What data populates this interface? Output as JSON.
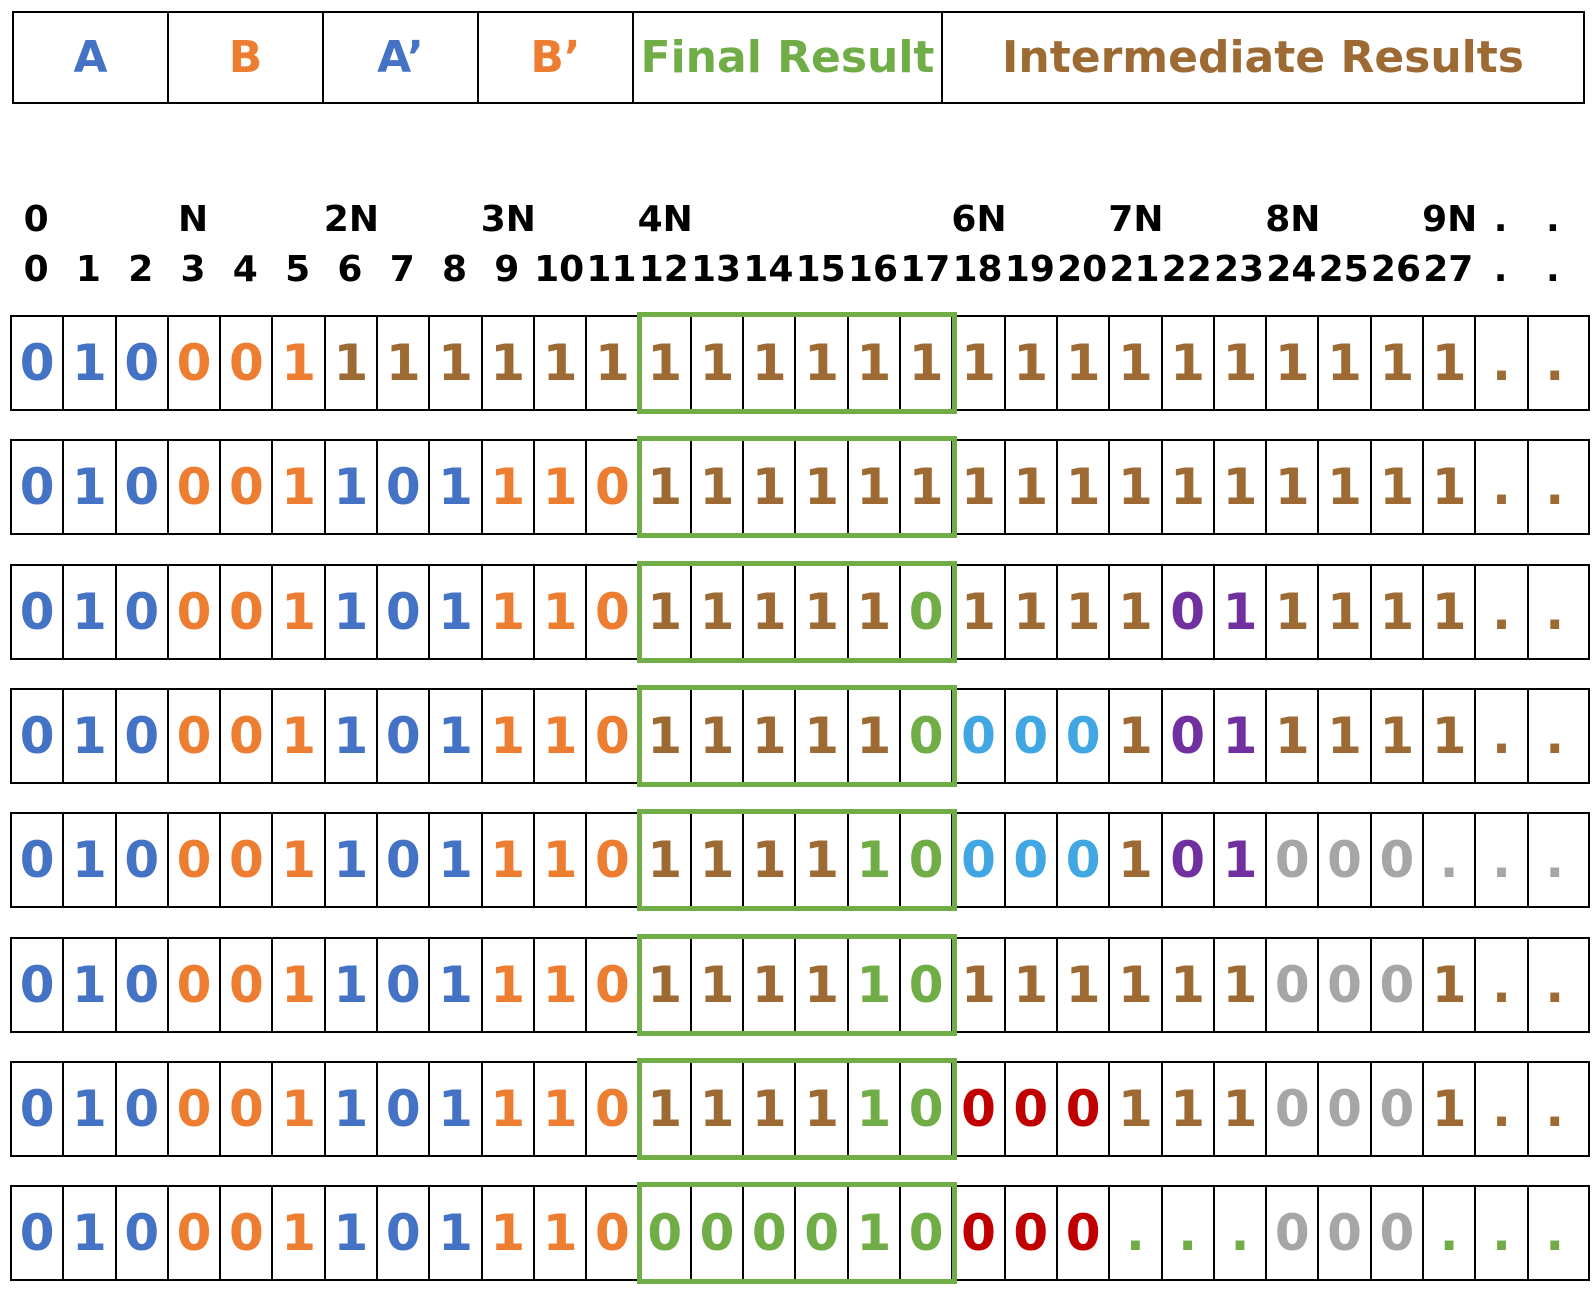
{
  "colors": {
    "A": "#4472c4",
    "B": "#ed7d31",
    "final": "#70ad47",
    "intermediate": "#9c6a32",
    "cyan": "#41a7e3",
    "purple": "#7030a0",
    "gray": "#a6a6a6",
    "red": "#c00000"
  },
  "legend": [
    {
      "label": "A",
      "color": "A"
    },
    {
      "label": "B",
      "color": "B"
    },
    {
      "label": "A’",
      "color": "A"
    },
    {
      "label": "B’",
      "color": "B"
    },
    {
      "label": "Final Result",
      "color": "final"
    },
    {
      "label": "Intermediate Results",
      "color": "intermediate"
    }
  ],
  "header_top": [
    {
      "col": 0,
      "text": "0"
    },
    {
      "col": 3,
      "text": "N"
    },
    {
      "col": 6,
      "text": "2N"
    },
    {
      "col": 9,
      "text": "3N"
    },
    {
      "col": 12,
      "text": "4N"
    },
    {
      "col": 18,
      "text": "6N"
    },
    {
      "col": 21,
      "text": "7N"
    },
    {
      "col": 24,
      "text": "8N"
    },
    {
      "col": 27,
      "text": "9N"
    },
    {
      "col": 28,
      "text": "."
    },
    {
      "col": 29,
      "text": "."
    }
  ],
  "header_bottom": [
    "0",
    "1",
    "2",
    "3",
    "4",
    "5",
    "6",
    "7",
    "8",
    "9",
    "10",
    "11",
    "12",
    "13",
    "14",
    "15",
    "16",
    "17",
    "18",
    "19",
    "20",
    "21",
    "22",
    "23",
    "24",
    "25",
    "26",
    "27",
    ".",
    "."
  ],
  "rows": [
    [
      [
        "0",
        "A"
      ],
      [
        "1",
        "A"
      ],
      [
        "0",
        "A"
      ],
      [
        "0",
        "B"
      ],
      [
        "0",
        "B"
      ],
      [
        "1",
        "B"
      ],
      [
        "1",
        "I"
      ],
      [
        "1",
        "I"
      ],
      [
        "1",
        "I"
      ],
      [
        "1",
        "I"
      ],
      [
        "1",
        "I"
      ],
      [
        "1",
        "I"
      ],
      [
        "1",
        "I"
      ],
      [
        "1",
        "I"
      ],
      [
        "1",
        "I"
      ],
      [
        "1",
        "I"
      ],
      [
        "1",
        "I"
      ],
      [
        "1",
        "I"
      ],
      [
        "1",
        "I"
      ],
      [
        "1",
        "I"
      ],
      [
        "1",
        "I"
      ],
      [
        "1",
        "I"
      ],
      [
        "1",
        "I"
      ],
      [
        "1",
        "I"
      ],
      [
        "1",
        "I"
      ],
      [
        "1",
        "I"
      ],
      [
        "1",
        "I"
      ],
      [
        "1",
        "I"
      ],
      [
        ".",
        "I"
      ],
      [
        ".",
        "I"
      ]
    ],
    [
      [
        "0",
        "A"
      ],
      [
        "1",
        "A"
      ],
      [
        "0",
        "A"
      ],
      [
        "0",
        "B"
      ],
      [
        "0",
        "B"
      ],
      [
        "1",
        "B"
      ],
      [
        "1",
        "A"
      ],
      [
        "0",
        "A"
      ],
      [
        "1",
        "A"
      ],
      [
        "1",
        "B"
      ],
      [
        "1",
        "B"
      ],
      [
        "0",
        "B"
      ],
      [
        "1",
        "I"
      ],
      [
        "1",
        "I"
      ],
      [
        "1",
        "I"
      ],
      [
        "1",
        "I"
      ],
      [
        "1",
        "I"
      ],
      [
        "1",
        "I"
      ],
      [
        "1",
        "I"
      ],
      [
        "1",
        "I"
      ],
      [
        "1",
        "I"
      ],
      [
        "1",
        "I"
      ],
      [
        "1",
        "I"
      ],
      [
        "1",
        "I"
      ],
      [
        "1",
        "I"
      ],
      [
        "1",
        "I"
      ],
      [
        "1",
        "I"
      ],
      [
        "1",
        "I"
      ],
      [
        ".",
        "I"
      ],
      [
        ".",
        "I"
      ]
    ],
    [
      [
        "0",
        "A"
      ],
      [
        "1",
        "A"
      ],
      [
        "0",
        "A"
      ],
      [
        "0",
        "B"
      ],
      [
        "0",
        "B"
      ],
      [
        "1",
        "B"
      ],
      [
        "1",
        "A"
      ],
      [
        "0",
        "A"
      ],
      [
        "1",
        "A"
      ],
      [
        "1",
        "B"
      ],
      [
        "1",
        "B"
      ],
      [
        "0",
        "B"
      ],
      [
        "1",
        "I"
      ],
      [
        "1",
        "I"
      ],
      [
        "1",
        "I"
      ],
      [
        "1",
        "I"
      ],
      [
        "1",
        "I"
      ],
      [
        "0",
        "F"
      ],
      [
        "1",
        "I"
      ],
      [
        "1",
        "I"
      ],
      [
        "1",
        "I"
      ],
      [
        "1",
        "I"
      ],
      [
        "0",
        "P"
      ],
      [
        "1",
        "P"
      ],
      [
        "1",
        "I"
      ],
      [
        "1",
        "I"
      ],
      [
        "1",
        "I"
      ],
      [
        "1",
        "I"
      ],
      [
        ".",
        "I"
      ],
      [
        ".",
        "I"
      ]
    ],
    [
      [
        "0",
        "A"
      ],
      [
        "1",
        "A"
      ],
      [
        "0",
        "A"
      ],
      [
        "0",
        "B"
      ],
      [
        "0",
        "B"
      ],
      [
        "1",
        "B"
      ],
      [
        "1",
        "A"
      ],
      [
        "0",
        "A"
      ],
      [
        "1",
        "A"
      ],
      [
        "1",
        "B"
      ],
      [
        "1",
        "B"
      ],
      [
        "0",
        "B"
      ],
      [
        "1",
        "I"
      ],
      [
        "1",
        "I"
      ],
      [
        "1",
        "I"
      ],
      [
        "1",
        "I"
      ],
      [
        "1",
        "I"
      ],
      [
        "0",
        "F"
      ],
      [
        "0",
        "C"
      ],
      [
        "0",
        "C"
      ],
      [
        "0",
        "C"
      ],
      [
        "1",
        "I"
      ],
      [
        "0",
        "P"
      ],
      [
        "1",
        "P"
      ],
      [
        "1",
        "I"
      ],
      [
        "1",
        "I"
      ],
      [
        "1",
        "I"
      ],
      [
        "1",
        "I"
      ],
      [
        ".",
        "I"
      ],
      [
        ".",
        "I"
      ]
    ],
    [
      [
        "0",
        "A"
      ],
      [
        "1",
        "A"
      ],
      [
        "0",
        "A"
      ],
      [
        "0",
        "B"
      ],
      [
        "0",
        "B"
      ],
      [
        "1",
        "B"
      ],
      [
        "1",
        "A"
      ],
      [
        "0",
        "A"
      ],
      [
        "1",
        "A"
      ],
      [
        "1",
        "B"
      ],
      [
        "1",
        "B"
      ],
      [
        "0",
        "B"
      ],
      [
        "1",
        "I"
      ],
      [
        "1",
        "I"
      ],
      [
        "1",
        "I"
      ],
      [
        "1",
        "I"
      ],
      [
        "1",
        "F"
      ],
      [
        "0",
        "F"
      ],
      [
        "0",
        "C"
      ],
      [
        "0",
        "C"
      ],
      [
        "0",
        "C"
      ],
      [
        "1",
        "I"
      ],
      [
        "0",
        "P"
      ],
      [
        "1",
        "P"
      ],
      [
        "0",
        "G"
      ],
      [
        "0",
        "G"
      ],
      [
        "0",
        "G"
      ],
      [
        ".",
        "G"
      ],
      [
        ".",
        "G"
      ],
      [
        ".",
        "G"
      ]
    ],
    [
      [
        "0",
        "A"
      ],
      [
        "1",
        "A"
      ],
      [
        "0",
        "A"
      ],
      [
        "0",
        "B"
      ],
      [
        "0",
        "B"
      ],
      [
        "1",
        "B"
      ],
      [
        "1",
        "A"
      ],
      [
        "0",
        "A"
      ],
      [
        "1",
        "A"
      ],
      [
        "1",
        "B"
      ],
      [
        "1",
        "B"
      ],
      [
        "0",
        "B"
      ],
      [
        "1",
        "I"
      ],
      [
        "1",
        "I"
      ],
      [
        "1",
        "I"
      ],
      [
        "1",
        "I"
      ],
      [
        "1",
        "F"
      ],
      [
        "0",
        "F"
      ],
      [
        "1",
        "I"
      ],
      [
        "1",
        "I"
      ],
      [
        "1",
        "I"
      ],
      [
        "1",
        "I"
      ],
      [
        "1",
        "I"
      ],
      [
        "1",
        "I"
      ],
      [
        "0",
        "G"
      ],
      [
        "0",
        "G"
      ],
      [
        "0",
        "G"
      ],
      [
        "1",
        "I"
      ],
      [
        ".",
        "I"
      ],
      [
        ".",
        "I"
      ]
    ],
    [
      [
        "0",
        "A"
      ],
      [
        "1",
        "A"
      ],
      [
        "0",
        "A"
      ],
      [
        "0",
        "B"
      ],
      [
        "0",
        "B"
      ],
      [
        "1",
        "B"
      ],
      [
        "1",
        "A"
      ],
      [
        "0",
        "A"
      ],
      [
        "1",
        "A"
      ],
      [
        "1",
        "B"
      ],
      [
        "1",
        "B"
      ],
      [
        "0",
        "B"
      ],
      [
        "1",
        "I"
      ],
      [
        "1",
        "I"
      ],
      [
        "1",
        "I"
      ],
      [
        "1",
        "I"
      ],
      [
        "1",
        "F"
      ],
      [
        "0",
        "F"
      ],
      [
        "0",
        "R"
      ],
      [
        "0",
        "R"
      ],
      [
        "0",
        "R"
      ],
      [
        "1",
        "I"
      ],
      [
        "1",
        "I"
      ],
      [
        "1",
        "I"
      ],
      [
        "0",
        "G"
      ],
      [
        "0",
        "G"
      ],
      [
        "0",
        "G"
      ],
      [
        "1",
        "I"
      ],
      [
        ".",
        "I"
      ],
      [
        ".",
        "I"
      ]
    ],
    [
      [
        "0",
        "A"
      ],
      [
        "1",
        "A"
      ],
      [
        "0",
        "A"
      ],
      [
        "0",
        "B"
      ],
      [
        "0",
        "B"
      ],
      [
        "1",
        "B"
      ],
      [
        "1",
        "A"
      ],
      [
        "0",
        "A"
      ],
      [
        "1",
        "A"
      ],
      [
        "1",
        "B"
      ],
      [
        "1",
        "B"
      ],
      [
        "0",
        "B"
      ],
      [
        "0",
        "F"
      ],
      [
        "0",
        "F"
      ],
      [
        "0",
        "F"
      ],
      [
        "0",
        "F"
      ],
      [
        "1",
        "F"
      ],
      [
        "0",
        "F"
      ],
      [
        "0",
        "R"
      ],
      [
        "0",
        "R"
      ],
      [
        "0",
        "R"
      ],
      [
        ".",
        "F"
      ],
      [
        ".",
        "F"
      ],
      [
        ".",
        "F"
      ],
      [
        "0",
        "G"
      ],
      [
        "0",
        "G"
      ],
      [
        "0",
        "G"
      ],
      [
        ".",
        "F"
      ],
      [
        ".",
        "F"
      ],
      [
        ".",
        "F"
      ]
    ]
  ]
}
